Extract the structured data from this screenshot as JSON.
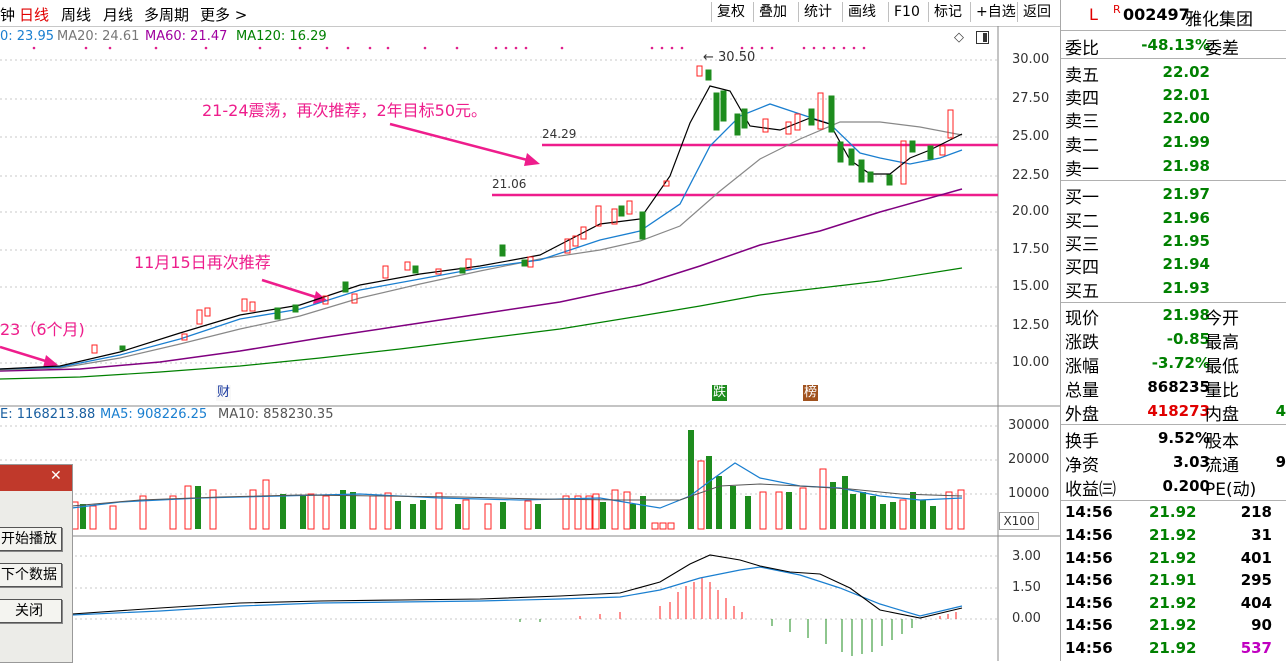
{
  "period_tabs": [
    "钟",
    "日线",
    "周线",
    "月线",
    "多周期",
    "更多 >"
  ],
  "toolbar": [
    "复权",
    "叠加",
    "统计",
    "画线",
    "F10",
    "标记",
    "+自选",
    "返回"
  ],
  "ma_legend": {
    "ma10": "0: 23.95",
    "ma20": "MA20: 24.61",
    "ma60": "MA60: 21.47",
    "ma120": "MA120: 16.29"
  },
  "vol_legend": {
    "vol": "E: 1168213.88",
    "ma5": "MA5: 908226.25",
    "ma10": "MA10: 858230.35"
  },
  "annotations": {
    "high_price": "30.50",
    "upper_line": "24.29",
    "lower_line": "21.06",
    "note1": "21-24震荡，再次推荐，2年目标50元。",
    "note2": "11月15日再次推荐",
    "note3": "23（6个月)",
    "marker_cai": "财",
    "marker_die": "跌",
    "marker_bang": "榜"
  },
  "price_axis": [
    "30.00",
    "27.50",
    "25.00",
    "22.50",
    "20.00",
    "17.50",
    "15.00",
    "12.50",
    "10.00"
  ],
  "vol_axis": [
    "30000",
    "20000",
    "10000"
  ],
  "vol_unit": "X100",
  "macd_axis": [
    "3.00",
    "1.50",
    "0.00"
  ],
  "colors": {
    "up": "#ff3030",
    "down": "#1e8c1e",
    "annotation": "#e8187c",
    "ma60": "#800080",
    "ma120": "#008000"
  },
  "stock": {
    "l_mark": "L",
    "r_mark": "R",
    "code": "002497",
    "name": "雅化集团"
  },
  "order_ratio": {
    "label": "委比",
    "value": "-48.13%",
    "label2": "委差"
  },
  "asks": [
    {
      "label": "卖五",
      "price": "22.02"
    },
    {
      "label": "卖四",
      "price": "22.01"
    },
    {
      "label": "卖三",
      "price": "22.00"
    },
    {
      "label": "卖二",
      "price": "21.99"
    },
    {
      "label": "卖一",
      "price": "21.98"
    }
  ],
  "bids": [
    {
      "label": "买一",
      "price": "21.97"
    },
    {
      "label": "买二",
      "price": "21.96"
    },
    {
      "label": "买三",
      "price": "21.95"
    },
    {
      "label": "买四",
      "price": "21.94"
    },
    {
      "label": "买五",
      "price": "21.93"
    }
  ],
  "quote": [
    {
      "label": "现价",
      "value": "21.98",
      "label2": "今开",
      "value2": ""
    },
    {
      "label": "涨跌",
      "value": "-0.85",
      "label2": "最高",
      "value2": ""
    },
    {
      "label": "涨幅",
      "value": "-3.72%",
      "label2": "最低",
      "value2": ""
    },
    {
      "label": "总量",
      "value": "868235",
      "label2": "量比",
      "value2": ""
    },
    {
      "label": "外盘",
      "value": "418273",
      "label2": "内盘",
      "value2": "4"
    }
  ],
  "stats": [
    {
      "label": "换手",
      "value": "9.52%",
      "label2": "股本",
      "value2": ""
    },
    {
      "label": "净资",
      "value": "3.03",
      "label2": "流通",
      "value2": "9"
    },
    {
      "label": "收益㈢",
      "value": "0.200",
      "label2": "PE(动)",
      "value2": ""
    }
  ],
  "ticks": [
    {
      "time": "14:56",
      "price": "21.92",
      "vol": "218"
    },
    {
      "time": "14:56",
      "price": "21.92",
      "vol": "31"
    },
    {
      "time": "14:56",
      "price": "21.92",
      "vol": "401"
    },
    {
      "time": "14:56",
      "price": "21.91",
      "vol": "295"
    },
    {
      "time": "14:56",
      "price": "21.92",
      "vol": "404"
    },
    {
      "time": "14:56",
      "price": "21.92",
      "vol": "90"
    },
    {
      "time": "14:56",
      "price": "21.92",
      "vol": "537"
    }
  ],
  "dialog": {
    "play": "开始播放",
    "next": "下个数据",
    "close": "关闭",
    "close_x": "✕"
  }
}
